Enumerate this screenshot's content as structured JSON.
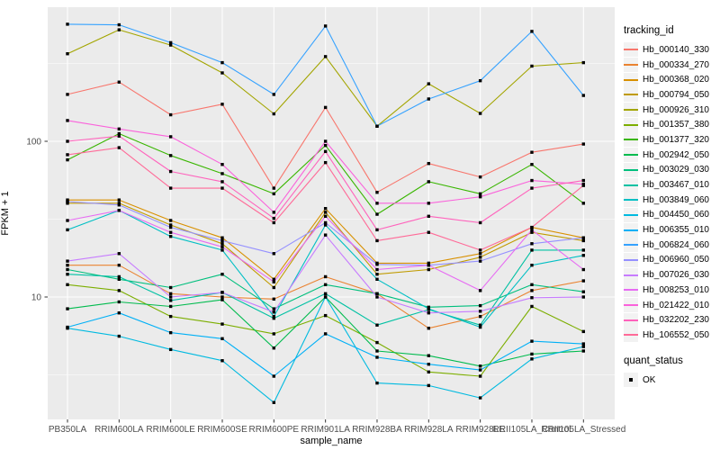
{
  "chart_data": {
    "type": "line",
    "xlabel": "sample_name",
    "ylabel": "FPKM + 1",
    "y_scale": "log10",
    "y_ticks": [
      10,
      100
    ],
    "y_minor_ticks": [
      3.162,
      31.62,
      316.2
    ],
    "grid": true,
    "panel_bg": "#EBEBEB",
    "grid_color": "#FFFFFF",
    "tick_label_color": "#4D4D4D",
    "point_color": "#000000",
    "legend_position": "right",
    "categories": [
      "PB350LA",
      "RRIM600LA",
      "RRIM600LE",
      "RRIM600SE",
      "RRIM600PE",
      "RRIM901LA",
      "RRIM928BA",
      "RRIM928LA",
      "RRIM928LE",
      "RRII105LA_Control",
      "RRII105LA_Stressed"
    ],
    "series": [
      {
        "name": "Hb_000140_330",
        "color": "#F8766D",
        "values": [
          200,
          240,
          148,
          173,
          50,
          165,
          47,
          72,
          59,
          85,
          96
        ]
      },
      {
        "name": "Hb_000334_270",
        "color": "#EA8331",
        "values": [
          16,
          16,
          10.5,
          10,
          9.7,
          13.5,
          10.5,
          6.3,
          7.5,
          11,
          12.7
        ]
      },
      {
        "name": "Hb_000368_020",
        "color": "#D89000",
        "values": [
          42,
          42,
          31,
          24,
          13,
          37,
          16.5,
          16.5,
          19,
          28,
          24
        ]
      },
      {
        "name": "Hb_000794_050",
        "color": "#C09B00",
        "values": [
          40,
          40,
          29,
          22,
          11.5,
          35,
          14,
          15,
          18,
          26,
          23
        ]
      },
      {
        "name": "Hb_000926_310",
        "color": "#A3A500",
        "values": [
          365,
          520,
          415,
          275,
          150,
          350,
          125,
          234,
          151,
          304,
          320
        ]
      },
      {
        "name": "Hb_001357_380",
        "color": "#7CAE00",
        "values": [
          12,
          11,
          7.5,
          6.7,
          5.8,
          7.6,
          5.1,
          3.3,
          3.1,
          8.7,
          6.0
        ]
      },
      {
        "name": "Hb_001377_320",
        "color": "#39B600",
        "values": [
          76,
          112,
          81,
          62,
          46,
          94,
          34,
          55,
          46,
          71,
          40
        ]
      },
      {
        "name": "Hb_002942_050",
        "color": "#00BB4E",
        "values": [
          8.4,
          9.3,
          8.7,
          9.6,
          4.7,
          10,
          4.5,
          4.2,
          3.6,
          4.3,
          4.5
        ]
      },
      {
        "name": "Hb_003029_030",
        "color": "#00BF7D",
        "values": [
          15,
          13,
          11.5,
          14,
          8.4,
          12,
          10.5,
          8.6,
          8.8,
          12,
          10.8
        ]
      },
      {
        "name": "Hb_003467_010",
        "color": "#00C1A3",
        "values": [
          14,
          13.5,
          9.5,
          10.7,
          7.3,
          10.5,
          6.6,
          8.3,
          6.6,
          20,
          20
        ]
      },
      {
        "name": "Hb_003849_060",
        "color": "#00BFC4",
        "values": [
          27,
          36,
          24.5,
          20,
          7.5,
          29,
          13,
          8.4,
          6.4,
          16,
          18.5
        ]
      },
      {
        "name": "Hb_004450_060",
        "color": "#00BAE0",
        "values": [
          6.3,
          5.6,
          4.6,
          3.9,
          2.1,
          10,
          2.8,
          2.7,
          2.25,
          4.0,
          4.8
        ]
      },
      {
        "name": "Hb_006355_010",
        "color": "#00B0F6",
        "values": [
          6.4,
          7.9,
          5.9,
          5.4,
          3.1,
          5.8,
          4.1,
          3.7,
          3.4,
          5.2,
          5.0
        ]
      },
      {
        "name": "Hb_006824_060",
        "color": "#35A2FF",
        "values": [
          565,
          560,
          430,
          320,
          200,
          550,
          125,
          187,
          245,
          508,
          197
        ]
      },
      {
        "name": "Hb_006960_050",
        "color": "#9590FF",
        "values": [
          41,
          39,
          28,
          23,
          19,
          30,
          16.2,
          16,
          17,
          22,
          24
        ]
      },
      {
        "name": "Hb_007026_030",
        "color": "#C77CFF",
        "values": [
          17,
          19,
          10,
          10.7,
          8,
          25,
          10,
          7.9,
          8.1,
          9.9,
          10
        ]
      },
      {
        "name": "Hb_008253_010",
        "color": "#E76BF3",
        "values": [
          31,
          36,
          26,
          21,
          12.5,
          33,
          15,
          16,
          11,
          27,
          15
        ]
      },
      {
        "name": "Hb_021422_010",
        "color": "#FA62DB",
        "values": [
          136,
          120,
          107,
          71,
          35,
          100,
          40,
          40,
          44,
          56,
          53
        ]
      },
      {
        "name": "Hb_032202_230",
        "color": "#FF62BC",
        "values": [
          100,
          108,
          64,
          55,
          32,
          86,
          27,
          33,
          30,
          50,
          56
        ]
      },
      {
        "name": "Hb_106552_050",
        "color": "#FF6A98",
        "values": [
          82,
          91,
          50,
          50,
          30,
          73,
          23,
          26,
          20,
          28,
          52
        ]
      }
    ],
    "color_legend": {
      "title": "tracking_id"
    },
    "shape_legend": {
      "title": "quant_status",
      "items": [
        {
          "label": "OK"
        }
      ]
    }
  }
}
